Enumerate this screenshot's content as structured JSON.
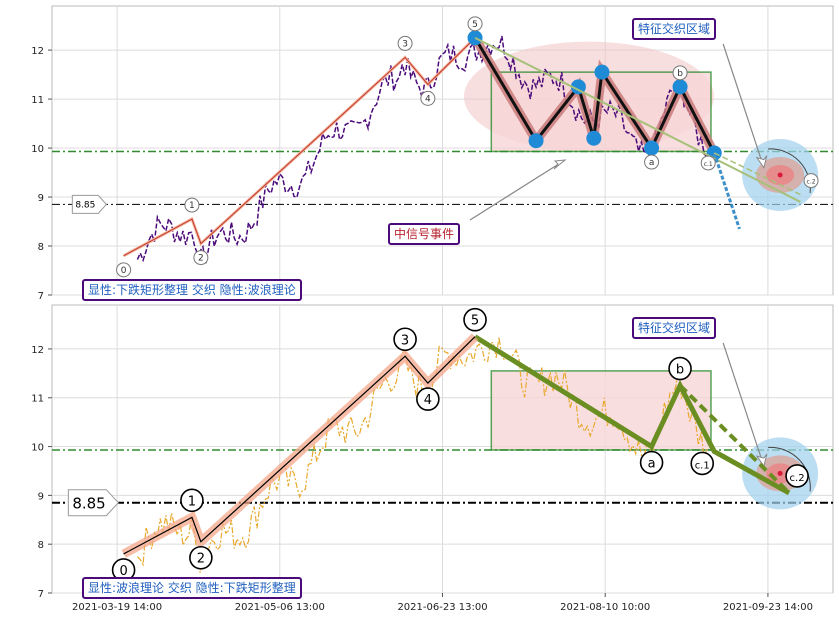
{
  "chart_data": [
    {
      "type": "line",
      "ylim": [
        7,
        12.9
      ],
      "yticks": [
        "7",
        "8",
        "9",
        "10",
        "11",
        "12"
      ],
      "price_series": {
        "color": "#4b0a7a",
        "style": "dashed"
      },
      "wave": {
        "color": "#c0392b",
        "points": [
          {
            "x": 0.8,
            "y": 7.8,
            "label": "0"
          },
          {
            "x": 9.2,
            "y": 8.55,
            "label": "1"
          },
          {
            "x": 10.3,
            "y": 8.05,
            "label": "2"
          },
          {
            "x": 35.4,
            "y": 11.85,
            "label": "3"
          },
          {
            "x": 38.2,
            "y": 11.3,
            "label": "4"
          },
          {
            "x": 44.0,
            "y": 12.25,
            "label": "5"
          },
          {
            "x": 65.7,
            "y": 10.0,
            "label": "a"
          },
          {
            "x": 69.2,
            "y": 11.25,
            "label": "b"
          },
          {
            "x": 73.4,
            "y": 9.9,
            "label": "c.1"
          },
          {
            "x": 82.6,
            "y": 9.05,
            "label": "c.2"
          }
        ]
      },
      "zigzag": [
        {
          "x": 44.0,
          "y": 12.25
        },
        {
          "x": 51.5,
          "y": 10.15
        },
        {
          "x": 56.7,
          "y": 11.25
        },
        {
          "x": 58.6,
          "y": 10.2
        },
        {
          "x": 59.6,
          "y": 11.55
        },
        {
          "x": 65.7,
          "y": 10.0
        },
        {
          "x": 69.2,
          "y": 11.25
        },
        {
          "x": 73.4,
          "y": 9.9
        }
      ],
      "rectangle": {
        "x0": 46.0,
        "x1": 73.0,
        "y0": 9.93,
        "y1": 11.55,
        "color": "#2e8b2e"
      },
      "support_line": {
        "y": 9.93,
        "color": "#2e8b2e"
      },
      "reference_line": {
        "y": 8.85,
        "label": "8.85"
      },
      "legend_text": "显性:下跌矩形整理 交织 隐性:波浪理论",
      "annotations": [
        {
          "text": "特征交织区域",
          "kind": "info"
        },
        {
          "text": "中信号事件",
          "kind": "signal"
        }
      ]
    },
    {
      "type": "line",
      "ylim": [
        7,
        12.9
      ],
      "yticks": [
        "7",
        "8",
        "9",
        "10",
        "11",
        "12"
      ],
      "price_series": {
        "color": "#e8a92e",
        "style": "dashdot"
      },
      "wave": {
        "color": "#000000",
        "points": [
          {
            "x": 0.8,
            "y": 7.8,
            "label": "0"
          },
          {
            "x": 9.2,
            "y": 8.55,
            "label": "1"
          },
          {
            "x": 10.3,
            "y": 8.05,
            "label": "2"
          },
          {
            "x": 35.4,
            "y": 11.85,
            "label": "3"
          },
          {
            "x": 38.2,
            "y": 11.3,
            "label": "4"
          },
          {
            "x": 44.0,
            "y": 12.25,
            "label": "5"
          },
          {
            "x": 65.7,
            "y": 10.0,
            "label": "a"
          },
          {
            "x": 69.2,
            "y": 11.25,
            "label": "b"
          },
          {
            "x": 73.4,
            "y": 9.9,
            "label": "c.1"
          },
          {
            "x": 82.6,
            "y": 9.05,
            "label": "c.2"
          }
        ]
      },
      "rectangle": {
        "x0": 46.0,
        "x1": 73.0,
        "y0": 9.93,
        "y1": 11.55,
        "color": "#2e8b2e"
      },
      "support_line": {
        "y": 9.93,
        "color": "#2e8b2e"
      },
      "reference_line": {
        "y": 8.85,
        "label": "8.85"
      },
      "legend_text": "显性:波浪理论 交织 隐性:下跌矩形整理",
      "annotations": [
        {
          "text": "特征交织区域",
          "kind": "info"
        }
      ]
    }
  ],
  "x_axis": {
    "ticks": [
      {
        "x": 0,
        "label": "2021-03-19 14:00"
      },
      {
        "x": 20,
        "label": "2021-05-06 13:00"
      },
      {
        "x": 40,
        "label": "2021-06-23 13:00"
      },
      {
        "x": 60,
        "label": "2021-08-10 10:00"
      },
      {
        "x": 80,
        "label": "2021-09-23 14:00"
      }
    ],
    "range": [
      -8,
      88
    ]
  },
  "colors": {
    "grid": "#dcdcdc",
    "accent_blue": "#1f8ad6",
    "rect_fill": "#f7d6d6",
    "ellipse_fill": "#f2c4c4",
    "target_fill": "#9fd0ee"
  }
}
